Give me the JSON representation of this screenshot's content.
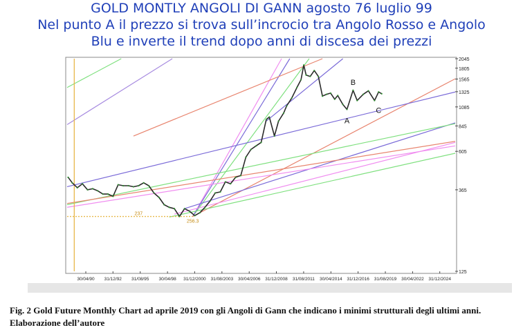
{
  "title_lines": [
    "GOLD MONTLY  ANGOLI DI GANN agosto 76 luglio 99",
    "Nel punto A il prezzo si trova sull’incrocio tra Angolo Rosso e Angolo",
    "Blu e inverte il trend dopo anni di discesa dei prezzi"
  ],
  "caption": "Fig. 2 Gold Future Monthly Chart ad aprile 2019 con gli Angoli di Gann che indicano i minimi strutturali degli ultimi  anni. Elaborazione dell’autore",
  "chart_data": {
    "type": "line",
    "y_axis": {
      "scale": "log",
      "ylim": [
        125,
        2045
      ],
      "ticks": [
        125,
        365,
        605,
        845,
        1085,
        1325,
        1565,
        1805,
        2045
      ]
    },
    "x_axis": {
      "xlim": [
        1988.5,
        2026.5
      ],
      "ticks": [
        {
          "x": 1990.33,
          "label": "30/04/90"
        },
        {
          "x": 1992.99,
          "label": "31/12/92"
        },
        {
          "x": 1995.66,
          "label": "31/08/95"
        },
        {
          "x": 1998.33,
          "label": "30/04/98"
        },
        {
          "x": 2000.99,
          "label": "31/12/2000"
        },
        {
          "x": 2003.66,
          "label": "31/08/2003"
        },
        {
          "x": 2006.33,
          "label": "30/04/2006"
        },
        {
          "x": 2008.99,
          "label": "31/12/2008"
        },
        {
          "x": 2011.66,
          "label": "31/08/2011"
        },
        {
          "x": 2014.33,
          "label": "30/04/2014"
        },
        {
          "x": 2016.99,
          "label": "31/12/2016"
        },
        {
          "x": 2019.66,
          "label": "31/08/2019"
        },
        {
          "x": 2022.33,
          "label": "30/04/2022"
        },
        {
          "x": 2024.99,
          "label": "31/12/2024"
        }
      ]
    },
    "price_series": {
      "name": "",
      "points": [
        [
          1988.6,
          430
        ],
        [
          1989.0,
          400
        ],
        [
          1989.5,
          375
        ],
        [
          1990.0,
          395
        ],
        [
          1990.5,
          365
        ],
        [
          1991.0,
          370
        ],
        [
          1991.5,
          360
        ],
        [
          1992.0,
          345
        ],
        [
          1992.5,
          345
        ],
        [
          1993.0,
          335
        ],
        [
          1993.5,
          390
        ],
        [
          1994.0,
          385
        ],
        [
          1994.5,
          385
        ],
        [
          1995.0,
          380
        ],
        [
          1995.5,
          385
        ],
        [
          1996.0,
          400
        ],
        [
          1996.5,
          385
        ],
        [
          1997.0,
          350
        ],
        [
          1997.5,
          330
        ],
        [
          1998.0,
          300
        ],
        [
          1998.5,
          290
        ],
        [
          1999.0,
          285
        ],
        [
          1999.5,
          257
        ],
        [
          2000.0,
          285
        ],
        [
          2000.5,
          275
        ],
        [
          2001.0,
          260
        ],
        [
          2001.5,
          270
        ],
        [
          2002.0,
          290
        ],
        [
          2002.5,
          315
        ],
        [
          2003.0,
          350
        ],
        [
          2003.5,
          355
        ],
        [
          2004.0,
          405
        ],
        [
          2004.5,
          395
        ],
        [
          2005.0,
          430
        ],
        [
          2005.5,
          440
        ],
        [
          2006.0,
          560
        ],
        [
          2006.5,
          620
        ],
        [
          2007.0,
          650
        ],
        [
          2007.5,
          680
        ],
        [
          2008.0,
          920
        ],
        [
          2008.3,
          950
        ],
        [
          2008.8,
          740
        ],
        [
          2009.2,
          900
        ],
        [
          2009.7,
          1000
        ],
        [
          2010.0,
          1100
        ],
        [
          2010.5,
          1220
        ],
        [
          2011.0,
          1400
        ],
        [
          2011.4,
          1550
        ],
        [
          2011.67,
          1880
        ],
        [
          2011.9,
          1650
        ],
        [
          2012.3,
          1620
        ],
        [
          2012.7,
          1750
        ],
        [
          2013.1,
          1620
        ],
        [
          2013.5,
          1250
        ],
        [
          2013.9,
          1280
        ],
        [
          2014.3,
          1300
        ],
        [
          2014.7,
          1200
        ],
        [
          2015.0,
          1260
        ],
        [
          2015.5,
          1120
        ],
        [
          2015.9,
          1050
        ],
        [
          2016.5,
          1350
        ],
        [
          2016.9,
          1180
        ],
        [
          2017.5,
          1280
        ],
        [
          2018.0,
          1340
        ],
        [
          2018.6,
          1180
        ],
        [
          2019.0,
          1320
        ],
        [
          2019.3,
          1290
        ]
      ]
    },
    "gann_lines": [
      {
        "color": "#7ee07e",
        "points": [
          [
            1988.5,
            1400
          ],
          [
            1993.8,
            2045
          ]
        ]
      },
      {
        "color": "#a78be0",
        "points": [
          [
            1988.5,
            860
          ],
          [
            1998.8,
            2045
          ]
        ]
      },
      {
        "color": "#f08cf0",
        "points": [
          [
            2000.8,
            257
          ],
          [
            2009.5,
            2045
          ]
        ]
      },
      {
        "color": "#7ee07e",
        "points": [
          [
            2000.8,
            257
          ],
          [
            2012.2,
            2045
          ]
        ]
      },
      {
        "color": "#7a6ad8",
        "points": [
          [
            2000.8,
            257
          ],
          [
            2010.3,
            2045
          ]
        ]
      },
      {
        "color": "#e8846e",
        "points": [
          [
            2000.8,
            257
          ],
          [
            2026.5,
            1570
          ]
        ]
      },
      {
        "color": "#e8846e",
        "points": [
          [
            1995.0,
            740
          ],
          [
            2013.5,
            2045
          ]
        ]
      },
      {
        "color": "#7a6ad8",
        "points": [
          [
            2008.0,
            900
          ],
          [
            2015.5,
            2045
          ]
        ]
      },
      {
        "color": "#7a6ad8",
        "points": [
          [
            1988.5,
            380
          ],
          [
            2026.5,
            1320
          ]
        ]
      },
      {
        "color": "#7a6ad8",
        "points": [
          [
            2000.0,
            285
          ],
          [
            2026.5,
            880
          ]
        ]
      },
      {
        "color": "#7ee07e",
        "points": [
          [
            1988.5,
            300
          ],
          [
            2026.5,
            870
          ]
        ]
      },
      {
        "color": "#e8846e",
        "points": [
          [
            1988.5,
            305
          ],
          [
            2026.5,
            690
          ]
        ]
      },
      {
        "color": "#f08cf0",
        "points": [
          [
            1988.5,
            290
          ],
          [
            2026.5,
            650
          ]
        ]
      },
      {
        "color": "#f08cf0",
        "points": [
          [
            1999.0,
            265
          ],
          [
            2026.5,
            680
          ]
        ]
      },
      {
        "color": "#7ee07e",
        "points": [
          [
            1998.5,
            255
          ],
          [
            2026.5,
            590
          ]
        ]
      }
    ],
    "reference_lines": [
      {
        "color": "#e8b84a",
        "orientation": "vertical",
        "x": 1989.2
      },
      {
        "color": "#e8b84a",
        "orientation": "horizontal",
        "y": 257,
        "x_range": [
          1988.5,
          2000.8
        ]
      }
    ],
    "annotations": [
      {
        "text": "A",
        "x": 2015.9,
        "y": 1050,
        "position": "below"
      },
      {
        "text": "B",
        "x": 2016.5,
        "y": 1350,
        "position": "above"
      },
      {
        "text": "C",
        "x": 2018.6,
        "y": 1180,
        "position": "below-right"
      },
      {
        "text": "237",
        "x": 1995.5,
        "y": 257
      },
      {
        "text": "256.3",
        "x": 2000.8,
        "y": 257,
        "position": "below"
      }
    ]
  }
}
